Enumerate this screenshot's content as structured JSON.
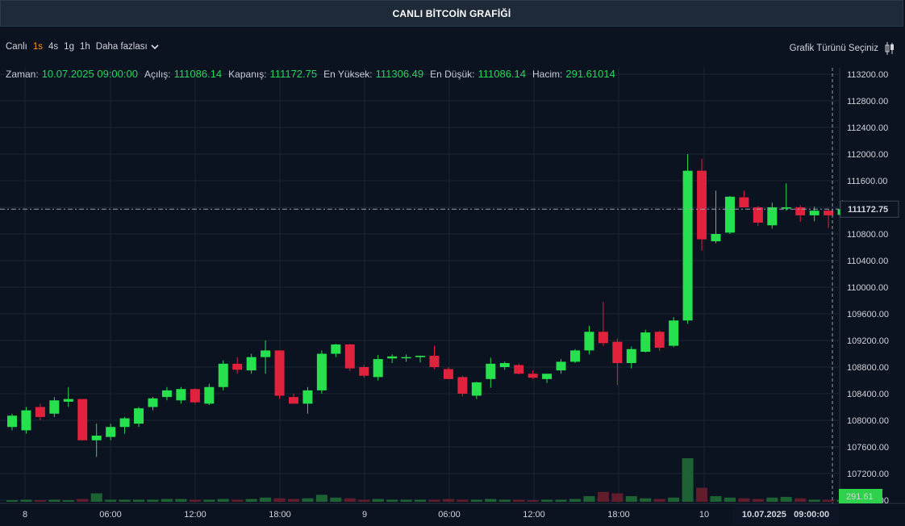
{
  "title": "CANLI BİTCOİN GRAFİĞİ",
  "toolbar": {
    "live_label": "Canlı",
    "timeframes": [
      {
        "label": "1s",
        "active": true
      },
      {
        "label": "4s",
        "active": false
      },
      {
        "label": "1g",
        "active": false
      },
      {
        "label": "1h",
        "active": false
      }
    ],
    "more_label": "Daha fazlası",
    "chart_type_label": "Grafik Türünü Seçiniz",
    "chart_type_icon": "candlestick-icon"
  },
  "ohlc": {
    "time_label": "Zaman:",
    "time_value": "10.07.2025 09:00:00",
    "open_label": "Açılış:",
    "open_value": "111086.14",
    "close_label": "Kapanış:",
    "close_value": "111172.75",
    "high_label": "En Yüksek:",
    "high_value": "111306.49",
    "low_label": "En Düşük:",
    "low_value": "111086.14",
    "volume_label": "Hacim:",
    "volume_value": "291.61014"
  },
  "crosshair": {
    "price_label": "111172.75",
    "volume_label": "291.61",
    "time_label": "10.07.2025   09:00:00"
  },
  "colors": {
    "background": "#0b1220",
    "up": "#26e04d",
    "down": "#e0223c",
    "grid": "#1b2636",
    "ohlc_value": "#26d65a",
    "active_timeframe": "#f7931a"
  },
  "chart_data": {
    "type": "candlestick",
    "y_range": [
      106800,
      113300
    ],
    "y_ticks": [
      "113200.00",
      "112800.00",
      "112400.00",
      "112000.00",
      "111600.00",
      "111200.00",
      "110800.00",
      "110400.00",
      "110000.00",
      "109600.00",
      "109200.00",
      "108800.00",
      "108400.00",
      "108000.00",
      "107600.00",
      "107200.00",
      "106800.00"
    ],
    "x_tick_labels": [
      "8",
      "06:00",
      "12:00",
      "18:00",
      "9",
      "06:00",
      "12:00",
      "18:00",
      "10"
    ],
    "grid": true,
    "candles": [
      {
        "o": 107900,
        "h": 108100,
        "l": 107850,
        "c": 108070,
        "v": 2
      },
      {
        "o": 107850,
        "h": 108200,
        "l": 107800,
        "c": 108150,
        "v": 3
      },
      {
        "o": 108200,
        "h": 108250,
        "l": 108000,
        "c": 108050,
        "v": 2
      },
      {
        "o": 108100,
        "h": 108350,
        "l": 108050,
        "c": 108300,
        "v": 3
      },
      {
        "o": 108280,
        "h": 108500,
        "l": 108200,
        "c": 108320,
        "v": 2
      },
      {
        "o": 108320,
        "h": 108300,
        "l": 107700,
        "c": 107700,
        "v": 4
      },
      {
        "o": 107700,
        "h": 107950,
        "l": 107450,
        "c": 107770,
        "v": 12
      },
      {
        "o": 107750,
        "h": 107950,
        "l": 107700,
        "c": 107900,
        "v": 3
      },
      {
        "o": 107900,
        "h": 108050,
        "l": 107800,
        "c": 108030,
        "v": 3
      },
      {
        "o": 107950,
        "h": 108200,
        "l": 107900,
        "c": 108180,
        "v": 3
      },
      {
        "o": 108200,
        "h": 108350,
        "l": 108150,
        "c": 108330,
        "v": 3
      },
      {
        "o": 108350,
        "h": 108500,
        "l": 108300,
        "c": 108450,
        "v": 4
      },
      {
        "o": 108300,
        "h": 108500,
        "l": 108250,
        "c": 108470,
        "v": 4
      },
      {
        "o": 108470,
        "h": 108480,
        "l": 108250,
        "c": 108270,
        "v": 3
      },
      {
        "o": 108250,
        "h": 108550,
        "l": 108230,
        "c": 108500,
        "v": 3
      },
      {
        "o": 108500,
        "h": 108900,
        "l": 108450,
        "c": 108850,
        "v": 4
      },
      {
        "o": 108850,
        "h": 108950,
        "l": 108700,
        "c": 108760,
        "v": 3
      },
      {
        "o": 108750,
        "h": 109000,
        "l": 108700,
        "c": 108950,
        "v": 4
      },
      {
        "o": 108950,
        "h": 109200,
        "l": 108700,
        "c": 109050,
        "v": 6
      },
      {
        "o": 109050,
        "h": 109050,
        "l": 108320,
        "c": 108370,
        "v": 5
      },
      {
        "o": 108350,
        "h": 108400,
        "l": 108250,
        "c": 108250,
        "v": 4
      },
      {
        "o": 108250,
        "h": 108500,
        "l": 108100,
        "c": 108450,
        "v": 5
      },
      {
        "o": 108450,
        "h": 109050,
        "l": 108400,
        "c": 109000,
        "v": 10
      },
      {
        "o": 109000,
        "h": 109150,
        "l": 108950,
        "c": 109140,
        "v": 6
      },
      {
        "o": 109140,
        "h": 109150,
        "l": 108740,
        "c": 108780,
        "v": 5
      },
      {
        "o": 108800,
        "h": 108830,
        "l": 108640,
        "c": 108670,
        "v": 3
      },
      {
        "o": 108650,
        "h": 108980,
        "l": 108600,
        "c": 108920,
        "v": 4
      },
      {
        "o": 108930,
        "h": 108990,
        "l": 108860,
        "c": 108960,
        "v": 3
      },
      {
        "o": 108940,
        "h": 108990,
        "l": 108880,
        "c": 108950,
        "v": 3
      },
      {
        "o": 108950,
        "h": 108970,
        "l": 108870,
        "c": 108970,
        "v": 3
      },
      {
        "o": 108970,
        "h": 109120,
        "l": 108770,
        "c": 108800,
        "v": 3
      },
      {
        "o": 108770,
        "h": 108800,
        "l": 108620,
        "c": 108620,
        "v": 4
      },
      {
        "o": 108650,
        "h": 108670,
        "l": 108360,
        "c": 108400,
        "v": 3
      },
      {
        "o": 108370,
        "h": 108580,
        "l": 108320,
        "c": 108570,
        "v": 3
      },
      {
        "o": 108620,
        "h": 108940,
        "l": 108490,
        "c": 108850,
        "v": 4
      },
      {
        "o": 108800,
        "h": 108880,
        "l": 108760,
        "c": 108860,
        "v": 3
      },
      {
        "o": 108830,
        "h": 108850,
        "l": 108690,
        "c": 108700,
        "v": 3
      },
      {
        "o": 108700,
        "h": 108750,
        "l": 108620,
        "c": 108640,
        "v": 2
      },
      {
        "o": 108620,
        "h": 108700,
        "l": 108560,
        "c": 108700,
        "v": 3
      },
      {
        "o": 108750,
        "h": 108920,
        "l": 108700,
        "c": 108880,
        "v": 3
      },
      {
        "o": 108880,
        "h": 109070,
        "l": 108860,
        "c": 109050,
        "v": 4
      },
      {
        "o": 109050,
        "h": 109420,
        "l": 108990,
        "c": 109330,
        "v": 8
      },
      {
        "o": 109330,
        "h": 109780,
        "l": 109120,
        "c": 109160,
        "v": 14
      },
      {
        "o": 109180,
        "h": 109230,
        "l": 108530,
        "c": 108860,
        "v": 12
      },
      {
        "o": 108860,
        "h": 109110,
        "l": 108780,
        "c": 109070,
        "v": 8
      },
      {
        "o": 109030,
        "h": 109360,
        "l": 109020,
        "c": 109320,
        "v": 5
      },
      {
        "o": 109330,
        "h": 109350,
        "l": 109040,
        "c": 109090,
        "v": 4
      },
      {
        "o": 109120,
        "h": 109550,
        "l": 109100,
        "c": 109500,
        "v": 6
      },
      {
        "o": 109500,
        "h": 112000,
        "l": 109450,
        "c": 111750,
        "v": 62
      },
      {
        "o": 111750,
        "h": 111930,
        "l": 110550,
        "c": 110720,
        "v": 20
      },
      {
        "o": 110690,
        "h": 111450,
        "l": 110660,
        "c": 110800,
        "v": 8
      },
      {
        "o": 110820,
        "h": 111370,
        "l": 110800,
        "c": 111360,
        "v": 6
      },
      {
        "o": 111350,
        "h": 111450,
        "l": 111200,
        "c": 111200,
        "v": 5
      },
      {
        "o": 111200,
        "h": 111220,
        "l": 110920,
        "c": 110970,
        "v": 4
      },
      {
        "o": 110930,
        "h": 111270,
        "l": 110880,
        "c": 111200,
        "v": 6
      },
      {
        "o": 111180,
        "h": 111560,
        "l": 111150,
        "c": 111200,
        "v": 7
      },
      {
        "o": 111200,
        "h": 111230,
        "l": 110980,
        "c": 111080,
        "v": 5
      },
      {
        "o": 111080,
        "h": 111210,
        "l": 110990,
        "c": 111150,
        "v": 3
      },
      {
        "o": 111150,
        "h": 111170,
        "l": 110890,
        "c": 111080,
        "v": 3
      },
      {
        "o": 111086.14,
        "h": 111306.49,
        "l": 111086.14,
        "c": 111172.75,
        "v": 3
      }
    ]
  }
}
